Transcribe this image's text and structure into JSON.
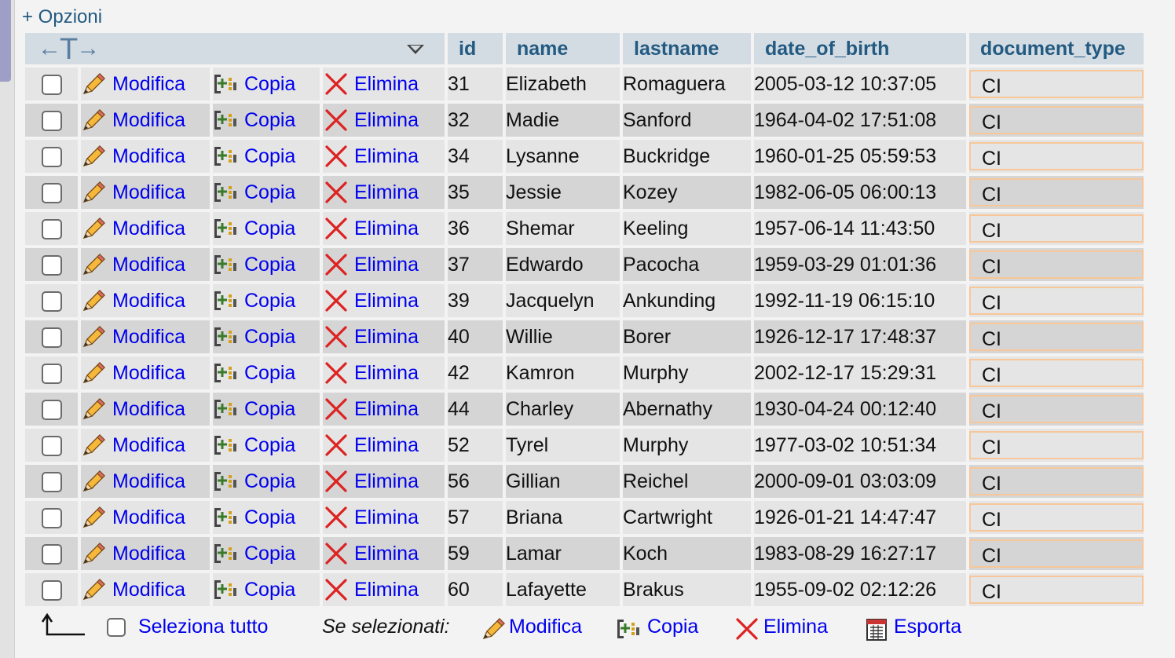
{
  "options_link": "+ Opzioni",
  "columns": [
    "id",
    "name",
    "lastname",
    "date_of_birth",
    "document_type"
  ],
  "actions": {
    "edit": "Modifica",
    "copy": "Copia",
    "delete": "Elimina"
  },
  "rows": [
    {
      "id": "31",
      "name": "Elizabeth",
      "lastname": "Romaguera",
      "date_of_birth": "2005-03-12 10:37:05",
      "document_type": "CI"
    },
    {
      "id": "32",
      "name": "Madie",
      "lastname": "Sanford",
      "date_of_birth": "1964-04-02 17:51:08",
      "document_type": "CI"
    },
    {
      "id": "34",
      "name": "Lysanne",
      "lastname": "Buckridge",
      "date_of_birth": "1960-01-25 05:59:53",
      "document_type": "CI"
    },
    {
      "id": "35",
      "name": "Jessie",
      "lastname": "Kozey",
      "date_of_birth": "1982-06-05 06:00:13",
      "document_type": "CI"
    },
    {
      "id": "36",
      "name": "Shemar",
      "lastname": "Keeling",
      "date_of_birth": "1957-06-14 11:43:50",
      "document_type": "CI"
    },
    {
      "id": "37",
      "name": "Edwardo",
      "lastname": "Pacocha",
      "date_of_birth": "1959-03-29 01:01:36",
      "document_type": "CI"
    },
    {
      "id": "39",
      "name": "Jacquelyn",
      "lastname": "Ankunding",
      "date_of_birth": "1992-11-19 06:15:10",
      "document_type": "CI"
    },
    {
      "id": "40",
      "name": "Willie",
      "lastname": "Borer",
      "date_of_birth": "1926-12-17 17:48:37",
      "document_type": "CI"
    },
    {
      "id": "42",
      "name": "Kamron",
      "lastname": "Murphy",
      "date_of_birth": "2002-12-17 15:29:31",
      "document_type": "CI"
    },
    {
      "id": "44",
      "name": "Charley",
      "lastname": "Abernathy",
      "date_of_birth": "1930-04-24 00:12:40",
      "document_type": "CI"
    },
    {
      "id": "52",
      "name": "Tyrel",
      "lastname": "Murphy",
      "date_of_birth": "1977-03-02 10:51:34",
      "document_type": "CI"
    },
    {
      "id": "56",
      "name": "Gillian",
      "lastname": "Reichel",
      "date_of_birth": "2000-09-01 03:03:09",
      "document_type": "CI"
    },
    {
      "id": "57",
      "name": "Briana",
      "lastname": "Cartwright",
      "date_of_birth": "1926-01-21 14:47:47",
      "document_type": "CI"
    },
    {
      "id": "59",
      "name": "Lamar",
      "lastname": "Koch",
      "date_of_birth": "1983-08-29 16:27:17",
      "document_type": "CI"
    },
    {
      "id": "60",
      "name": "Lafayette",
      "lastname": "Brakus",
      "date_of_birth": "1955-09-02 02:12:26",
      "document_type": "CI"
    }
  ],
  "footer": {
    "select_all": "Seleziona tutto",
    "with_selected": "Se selezionati:",
    "edit": "Modifica",
    "copy": "Copia",
    "delete": "Elimina",
    "export": "Esporta"
  },
  "icons": {
    "edit": "pencil-icon",
    "copy": "copy-icon",
    "delete": "delete-x-icon",
    "export": "export-icon",
    "column_arrows": "column-resize-arrows-icon",
    "dropdown": "dropdown-triangle-icon",
    "select_arrow": "corner-arrow-icon"
  },
  "colors": {
    "link": "#0000ee",
    "header_bg": "#d3dce3",
    "header_text": "#235a81",
    "row_odd": "#e5e5e5",
    "row_even": "#d5d5d5",
    "doc_border": "#f7c79a",
    "delete_red": "#d22"
  }
}
